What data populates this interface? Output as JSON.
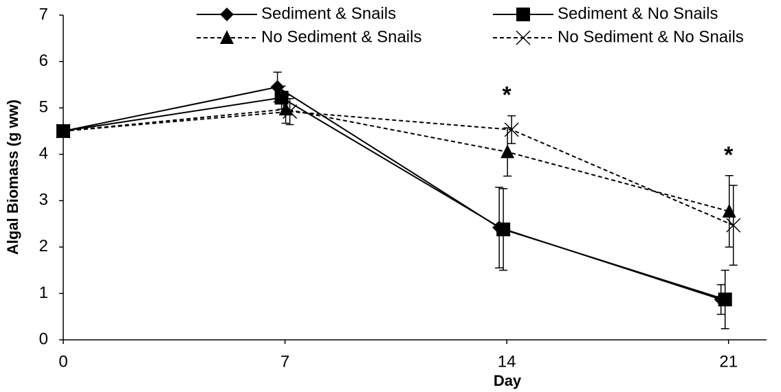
{
  "chart_data": {
    "type": "line",
    "x_label": "Day",
    "y_label": "Algal Biomass (g ww)",
    "x": [
      0,
      7,
      14,
      21
    ],
    "xlim": [
      0,
      22.2
    ],
    "xticks": [
      0,
      7,
      14,
      21
    ],
    "ylim": [
      0,
      7
    ],
    "yticks": [
      0,
      1,
      2,
      3,
      4,
      5,
      6,
      7
    ],
    "grid": false,
    "legend": "top",
    "series": [
      {
        "name": "Sediment & Snails",
        "color": "#000000",
        "marker": "diamond",
        "dashed": false,
        "values": [
          4.5,
          5.45,
          2.42,
          0.87
        ],
        "errors": [
          null,
          0.32,
          0.87,
          0.32
        ]
      },
      {
        "name": "Sediment & No Snails",
        "color": "#000000",
        "marker": "square",
        "dashed": false,
        "values": [
          4.5,
          5.22,
          2.38,
          0.87
        ],
        "errors": [
          null,
          0.25,
          0.88,
          0.63
        ]
      },
      {
        "name": "No Sediment & Snails",
        "color": "#000000",
        "marker": "triangle",
        "dashed": true,
        "values": [
          4.5,
          4.97,
          4.05,
          2.77
        ],
        "errors": [
          null,
          0.3,
          0.52,
          0.77
        ]
      },
      {
        "name": "No Sediment & No Snails",
        "color": "#000000",
        "marker": "x",
        "dashed": true,
        "values": [
          4.5,
          4.92,
          4.53,
          2.47
        ],
        "errors": [
          null,
          0.28,
          0.3,
          0.86
        ]
      }
    ],
    "annotations": [
      {
        "text": "*",
        "x": 14
      },
      {
        "text": "*",
        "x": 21
      }
    ]
  }
}
